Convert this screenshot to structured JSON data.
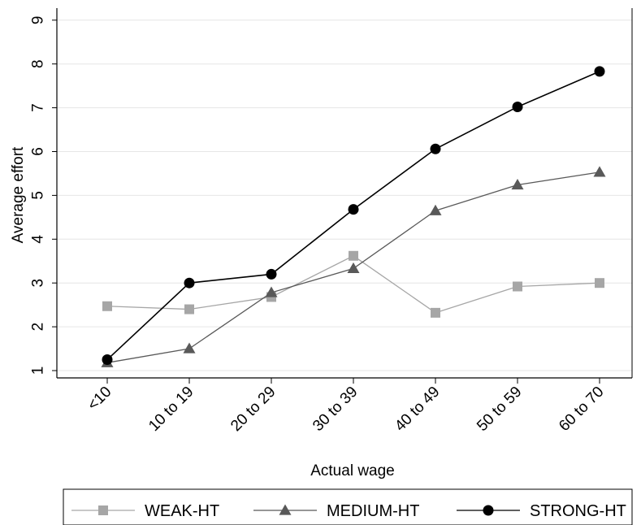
{
  "chart_data": {
    "type": "line",
    "title": "",
    "xlabel": "Actual wage",
    "ylabel": "Average effort",
    "categories": [
      "<10",
      "10 to 19",
      "20 to 29",
      "30 to 39",
      "40 to 49",
      "50 to 59",
      "60 to 70"
    ],
    "ylim": [
      1,
      9
    ],
    "yticks": [
      "1",
      "2",
      "3",
      "4",
      "5",
      "6",
      "7",
      "8",
      "9"
    ],
    "grid": "horizontal",
    "legend_position": "bottom",
    "series": [
      {
        "name": "WEAK-HT",
        "values": [
          2.47,
          2.4,
          2.68,
          3.62,
          2.32,
          2.92,
          3.0
        ],
        "color": "#a6a6a6",
        "marker": "square"
      },
      {
        "name": "MEDIUM-HT",
        "values": [
          1.18,
          1.5,
          2.78,
          3.33,
          4.65,
          5.24,
          5.53
        ],
        "color": "#595959",
        "marker": "triangle"
      },
      {
        "name": "STRONG-HT",
        "values": [
          1.25,
          3.0,
          3.2,
          4.68,
          6.06,
          7.02,
          7.83
        ],
        "color": "#000000",
        "marker": "circle"
      }
    ]
  }
}
